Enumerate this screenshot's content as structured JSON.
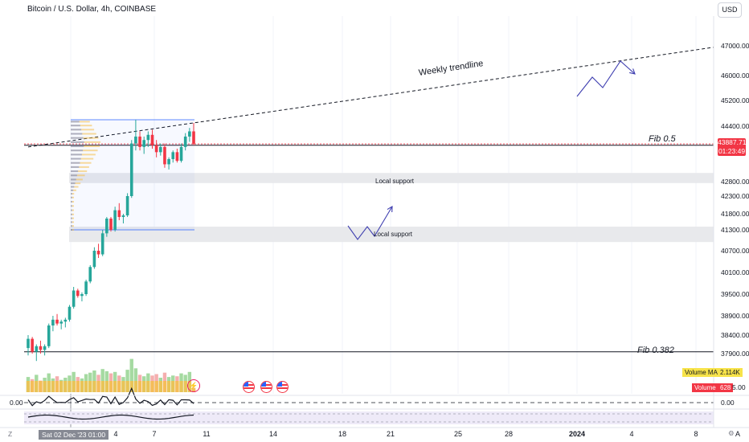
{
  "header": {
    "title": "Bitcoin / U.S. Dollar, 4h, COINBASE",
    "currency_button": "USD"
  },
  "price_scale": {
    "ticks": [
      "47000.00",
      "46000.00",
      "45200.00",
      "44400.00",
      "42800.00",
      "42300.00",
      "41800.00",
      "41300.00",
      "40700.00",
      "40100.00",
      "39500.00",
      "38900.00",
      "38400.00",
      "37900.00"
    ],
    "current_price": "43887.71",
    "countdown": "01:23:49"
  },
  "time_scale": {
    "ticks": [
      "4",
      "7",
      "11",
      "14",
      "18",
      "21",
      "25",
      "28",
      "2024",
      "4",
      "8",
      "A"
    ],
    "hover_date": "Sat 02 Dec '23  01:00"
  },
  "annotations": {
    "trendline_label": "Weekly trendline",
    "fib_05": "Fib 0.5",
    "fib_0382": "Fib 0.382",
    "zone_upper": "Local support",
    "zone_lower": "Local support"
  },
  "volume_pane": {
    "ma_label": "Volume MA",
    "ma_value": "2.114K",
    "vol_label": "Volume",
    "vol_value": "628",
    "vol_tail": "5.00"
  },
  "oscillator_pane": {
    "left_label": "0.00",
    "right_label": "0.00"
  },
  "corners": {
    "zoom_left": "Z",
    "auto_right": "⚙"
  },
  "colors": {
    "up": "#26a69a",
    "down": "#f23645",
    "zone": "#e8e9ec",
    "trend": "#131722",
    "arrow": "#3f3fb0"
  },
  "chart_data": {
    "type": "candlestick",
    "title": "Bitcoin / U.S. Dollar, 4h, COINBASE",
    "ylim": [
      37800,
      47300
    ],
    "candles": [
      [
        38050,
        38400,
        37850,
        38300
      ],
      [
        38300,
        38350,
        37900,
        37950
      ],
      [
        37950,
        38150,
        37700,
        38100
      ],
      [
        38100,
        38250,
        37900,
        38000
      ],
      [
        38000,
        38150,
        37850,
        38100
      ],
      [
        38100,
        38700,
        38050,
        38650
      ],
      [
        38650,
        38900,
        38500,
        38800
      ],
      [
        38800,
        38950,
        38650,
        38700
      ],
      [
        38700,
        38800,
        38550,
        38750
      ],
      [
        38750,
        38850,
        38600,
        38800
      ],
      [
        38800,
        39200,
        38750,
        39150
      ],
      [
        39150,
        39700,
        39100,
        39600
      ],
      [
        39600,
        39650,
        39400,
        39450
      ],
      [
        39450,
        39550,
        39300,
        39500
      ],
      [
        39500,
        39900,
        39450,
        39850
      ],
      [
        39850,
        40300,
        39800,
        40250
      ],
      [
        40250,
        40800,
        40200,
        40700
      ],
      [
        40700,
        40900,
        40500,
        40600
      ],
      [
        40600,
        41300,
        40550,
        41200
      ],
      [
        41200,
        41700,
        41100,
        41650
      ],
      [
        41650,
        41700,
        41250,
        41300
      ],
      [
        41300,
        42000,
        41250,
        41900
      ],
      [
        41900,
        42100,
        41600,
        41700
      ],
      [
        41700,
        41800,
        41500,
        41750
      ],
      [
        41750,
        42400,
        41700,
        42300
      ],
      [
        42300,
        44000,
        42250,
        43900
      ],
      [
        43900,
        44600,
        43700,
        44100
      ],
      [
        44100,
        44250,
        43700,
        43800
      ],
      [
        43800,
        44100,
        43600,
        44000
      ],
      [
        44000,
        44250,
        43800,
        44150
      ],
      [
        44150,
        44300,
        43750,
        43850
      ],
      [
        43850,
        44000,
        43500,
        43650
      ],
      [
        43650,
        43900,
        43550,
        43800
      ],
      [
        43800,
        43900,
        43200,
        43300
      ],
      [
        43300,
        43500,
        43150,
        43450
      ],
      [
        43450,
        43700,
        43350,
        43650
      ],
      [
        43650,
        43750,
        43350,
        43400
      ],
      [
        43400,
        43900,
        43350,
        43800
      ],
      [
        43800,
        44200,
        43700,
        44100
      ],
      [
        44100,
        44350,
        43950,
        44250
      ],
      [
        44250,
        44500,
        43850,
        43888
      ]
    ],
    "volumes": [
      2.1,
      1.8,
      2.4,
      1.6,
      2.0,
      2.6,
      1.9,
      2.2,
      1.7,
      2.0,
      2.3,
      2.8,
      2.1,
      1.9,
      2.5,
      2.7,
      3.0,
      2.4,
      3.2,
      2.9,
      2.6,
      2.8,
      2.3,
      2.1,
      3.1,
      4.6,
      3.3,
      2.4,
      2.2,
      2.6,
      2.3,
      2.5,
      2.0,
      2.7,
      2.1,
      2.3,
      2.2,
      2.6,
      2.4,
      2.8,
      0.6
    ],
    "levels": {
      "fib_0.5": 43850,
      "fib_0.382": 37950
    },
    "support_zones": [
      [
        42750,
        43050
      ],
      [
        40950,
        41400
      ]
    ],
    "trendline": {
      "from": [
        0,
        43800
      ],
      "to": [
        1,
        47050
      ]
    },
    "series": []
  }
}
